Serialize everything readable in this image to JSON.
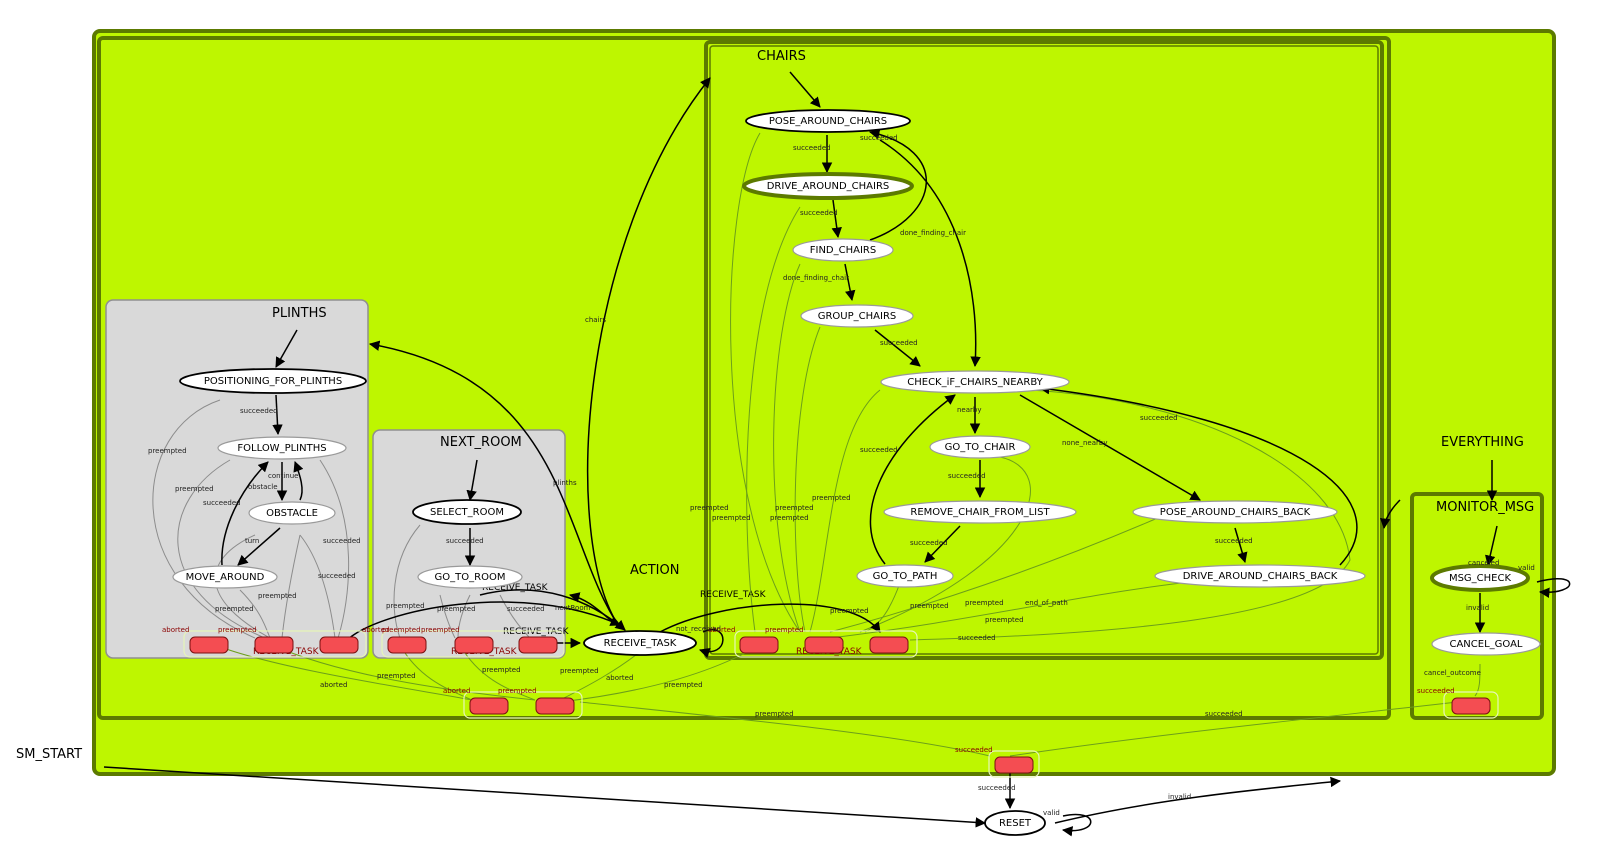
{
  "clusters": {
    "everything": "EVERYTHING",
    "action": "ACTION",
    "chairs": "CHAIRS",
    "plinths": "PLINTHS",
    "next_room": "NEXT_ROOM",
    "monitor_msg": "MONITOR_MSG",
    "receive_task_outer": "RECEIVE_TASK",
    "receive_task_plinths": "RECEIVE_TASK",
    "receive_task_nextroom": "RECEIVE_TASK",
    "receive_task_chairs": "RECEIVE_TASK",
    "receive_task_mid1": "RECEIVE_TASK",
    "receive_task_mid2": "RECEIVE_TASK",
    "receive_task_mid3": "RECEIVE_TASK"
  },
  "start_label": "SM_START",
  "nodes": {
    "pose_around_chairs": "POSE_AROUND_CHAIRS",
    "drive_around_chairs": "DRIVE_AROUND_CHAIRS",
    "find_chairs": "FIND_CHAIRS",
    "group_chairs": "GROUP_CHAIRS",
    "check_if_chairs_nearby": "CHECK_iF_CHAIRS_NEARBY",
    "go_to_chair": "GO_TO_CHAIR",
    "remove_chair_from_list": "REMOVE_CHAIR_FROM_LIST",
    "go_to_path": "GO_TO_PATH",
    "pose_around_chairs_back": "POSE_AROUND_CHAIRS_BACK",
    "drive_around_chairs_back": "DRIVE_AROUND_CHAIRS_BACK",
    "positioning_for_plinths": "POSITIONING_FOR_PLINTHS",
    "follow_plinths": "FOLLOW_PLINTHS",
    "obstacle": "OBSTACLE",
    "move_around": "MOVE_AROUND",
    "select_room": "SELECT_ROOM",
    "go_to_room": "GO_TO_ROOM",
    "receive_task": "RECEIVE_TASK",
    "msg_check": "MSG_CHECK",
    "cancel_goal": "CANCEL_GOAL",
    "reset": "RESET"
  },
  "edge_labels": {
    "succeeded": "succeeded",
    "preempted": "preempted",
    "aborted": "aborted",
    "done_finding_chair": "done_finding_chair",
    "nearby": "nearby",
    "none_nearby": "none_nearby",
    "end_of_path": "end_of_path",
    "chairs": "chairs",
    "plinths": "plinths",
    "nextroom": "nextRoom",
    "not_received": "not_received",
    "continue": "continue",
    "obstacle": "obstacle",
    "turn": "turn",
    "invalid": "invalid",
    "valid": "valid",
    "cancel_outcome": "cancel_outcome",
    "canceled": "canceled"
  }
}
